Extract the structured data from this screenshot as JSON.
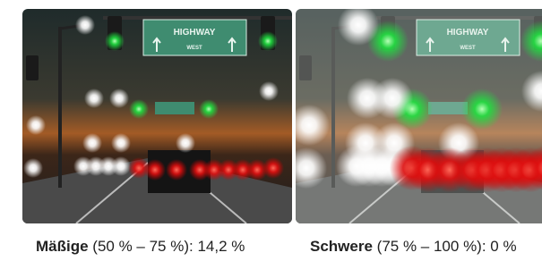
{
  "panels": [
    {
      "severity": "Mäßige",
      "range": "(50 % – 75 %): 14,2 %",
      "sign_title": "HIGHWAY",
      "sign_sub": "WEST"
    },
    {
      "severity": "Schwere",
      "range": "(75 % – 100 %): 0 %",
      "sign_title": "HIGHWAY",
      "sign_sub": "WEST"
    }
  ]
}
